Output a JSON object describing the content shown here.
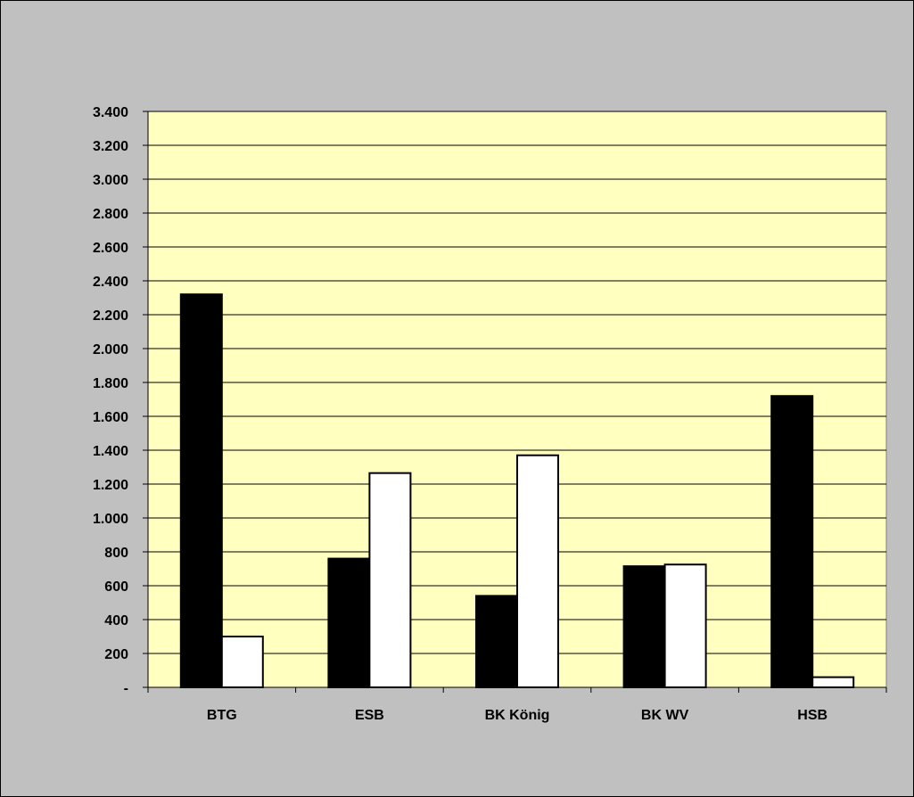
{
  "chart_data": {
    "type": "bar",
    "title": "",
    "xlabel": "",
    "ylabel": "",
    "categories": [
      "BTG",
      "ESB",
      "BK König",
      "BK WV",
      "HSB"
    ],
    "series": [
      {
        "values": [
          2320,
          760,
          540,
          715,
          1720
        ],
        "color": "#000000"
      },
      {
        "values": [
          300,
          1265,
          1370,
          725,
          60
        ],
        "color": "#ffffff"
      }
    ],
    "ylim": [
      0,
      3400
    ],
    "ytick_labels": [
      "-",
      "200",
      "400",
      "600",
      "800",
      "1.000",
      "1.200",
      "1.400",
      "1.600",
      "1.800",
      "2.000",
      "2.200",
      "2.400",
      "2.600",
      "2.800",
      "3.000",
      "3.200",
      "3.400"
    ],
    "grid": true,
    "legend": "none",
    "plot_background": "#ffffc0",
    "chart_background": "#c0c0c0"
  }
}
